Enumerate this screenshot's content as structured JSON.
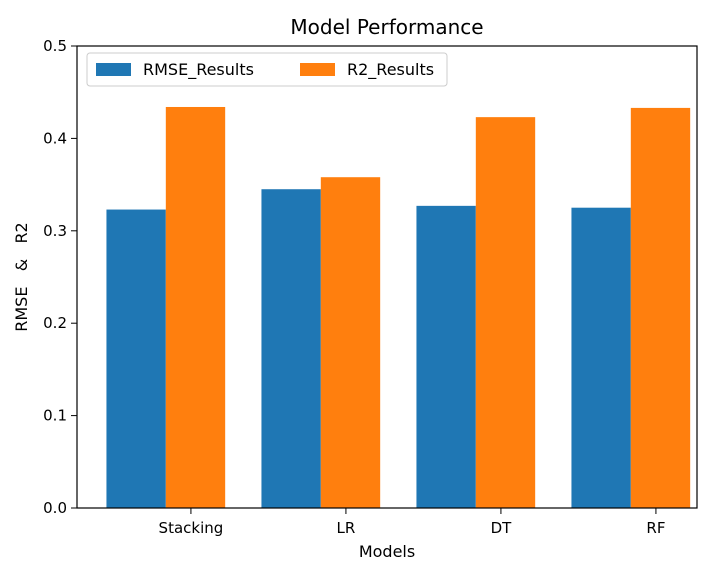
{
  "chart_data": {
    "type": "bar",
    "title": "Model Performance",
    "xlabel": "Models",
    "ylabel": "RMSE   &   R2",
    "categories": [
      "Stacking",
      "LR",
      "DT",
      "RF"
    ],
    "series": [
      {
        "name": "RMSE_Results",
        "color": "#1f77b4",
        "values": [
          0.323,
          0.345,
          0.327,
          0.325
        ]
      },
      {
        "name": "R2_Results",
        "color": "#ff7f0e",
        "values": [
          0.434,
          0.358,
          0.423,
          0.433
        ]
      }
    ],
    "ylim": [
      0,
      0.5
    ],
    "yticks": [
      "0.0",
      "0.1",
      "0.2",
      "0.3",
      "0.4",
      "0.5"
    ],
    "grid": false,
    "legend": "top-left"
  }
}
